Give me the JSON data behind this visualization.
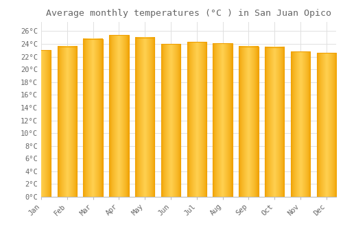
{
  "title": "Average monthly temperatures (°C ) in San Juan Opico",
  "months": [
    "Jan",
    "Feb",
    "Mar",
    "Apr",
    "May",
    "Jun",
    "Jul",
    "Aug",
    "Sep",
    "Oct",
    "Nov",
    "Dec"
  ],
  "values": [
    23.0,
    23.6,
    24.8,
    25.4,
    25.0,
    24.0,
    24.3,
    24.1,
    23.6,
    23.5,
    22.8,
    22.6
  ],
  "bar_color_center": "#FFD050",
  "bar_color_edge": "#F0A000",
  "background_color": "#FFFFFF",
  "grid_color": "#E0E0E0",
  "text_color": "#666666",
  "ytick_labels": [
    "0°C",
    "2°C",
    "4°C",
    "6°C",
    "8°C",
    "10°C",
    "12°C",
    "14°C",
    "16°C",
    "18°C",
    "20°C",
    "22°C",
    "24°C",
    "26°C"
  ],
  "ytick_values": [
    0,
    2,
    4,
    6,
    8,
    10,
    12,
    14,
    16,
    18,
    20,
    22,
    24,
    26
  ],
  "ylim": [
    0,
    27.5
  ],
  "title_fontsize": 9.5,
  "tick_fontsize": 7.5,
  "font_family": "monospace"
}
